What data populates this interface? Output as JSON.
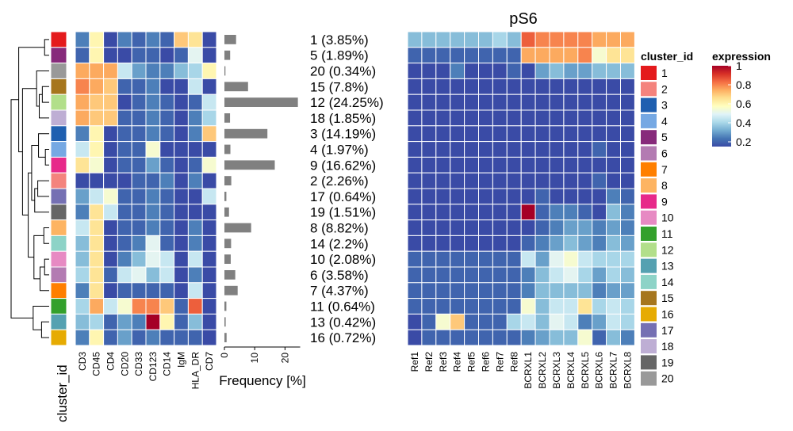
{
  "chart_data": {
    "type": "heatmap",
    "title": "pS6",
    "row_annotation_name": "cluster_id",
    "row_order": [
      "1",
      "5",
      "20",
      "15",
      "12",
      "18",
      "3",
      "4",
      "9",
      "2",
      "17",
      "19",
      "8",
      "14",
      "10",
      "6",
      "7",
      "11",
      "13",
      "16"
    ],
    "row_labels": [
      "1 (3.85%)",
      "5 (1.89%)",
      "20 (0.34%)",
      "15 (7.8%)",
      "12 (24.25%)",
      "18 (1.85%)",
      "3 (14.19%)",
      "4 (1.97%)",
      "9 (16.62%)",
      "2 (2.26%)",
      "17 (0.64%)",
      "19 (1.51%)",
      "8 (8.82%)",
      "14 (2.2%)",
      "10 (2.08%)",
      "6 (3.58%)",
      "7 (4.37%)",
      "11 (0.64%)",
      "13 (0.42%)",
      "16 (0.72%)"
    ],
    "frequencies": [
      3.85,
      1.89,
      0.34,
      7.8,
      24.25,
      1.85,
      14.19,
      1.97,
      16.62,
      2.26,
      0.64,
      1.51,
      8.82,
      2.2,
      2.08,
      3.58,
      4.37,
      0.64,
      0.42,
      0.72
    ],
    "frequency_axis": {
      "label": "Frequency [%]",
      "ticks": [
        0,
        10,
        20
      ],
      "range": [
        0,
        25
      ]
    },
    "marker_heatmap": {
      "columns": [
        "CD3",
        "CD45",
        "CD4",
        "CD20",
        "CD33",
        "CD123",
        "CD14",
        "IgM",
        "HLA_DR",
        "CD7"
      ],
      "values": [
        [
          0.25,
          0.6,
          0.15,
          0.25,
          0.2,
          0.25,
          0.2,
          0.7,
          0.65,
          0.15
        ],
        [
          0.2,
          0.6,
          0.15,
          0.15,
          0.2,
          0.2,
          0.15,
          0.2,
          0.5,
          0.15
        ],
        [
          0.75,
          0.75,
          0.75,
          0.45,
          0.3,
          0.25,
          0.25,
          0.35,
          0.4,
          0.6
        ],
        [
          0.8,
          0.75,
          0.7,
          0.2,
          0.2,
          0.25,
          0.15,
          0.15,
          0.45,
          0.15
        ],
        [
          0.75,
          0.7,
          0.7,
          0.15,
          0.2,
          0.25,
          0.2,
          0.15,
          0.2,
          0.45
        ],
        [
          0.75,
          0.7,
          0.7,
          0.2,
          0.2,
          0.25,
          0.2,
          0.15,
          0.25,
          0.4
        ],
        [
          0.25,
          0.6,
          0.15,
          0.2,
          0.2,
          0.25,
          0.2,
          0.15,
          0.25,
          0.7
        ],
        [
          0.45,
          0.6,
          0.15,
          0.2,
          0.2,
          0.55,
          0.15,
          0.15,
          0.15,
          0.15
        ],
        [
          0.65,
          0.55,
          0.15,
          0.2,
          0.2,
          0.3,
          0.2,
          0.15,
          0.2,
          0.55
        ],
        [
          0.15,
          0.15,
          0.15,
          0.15,
          0.2,
          0.2,
          0.25,
          0.15,
          0.25,
          0.15
        ],
        [
          0.3,
          0.45,
          0.55,
          0.2,
          0.2,
          0.25,
          0.2,
          0.15,
          0.15,
          0.45
        ],
        [
          0.25,
          0.65,
          0.45,
          0.2,
          0.2,
          0.25,
          0.2,
          0.15,
          0.15,
          0.15
        ],
        [
          0.45,
          0.65,
          0.15,
          0.2,
          0.2,
          0.25,
          0.2,
          0.15,
          0.25,
          0.15
        ],
        [
          0.35,
          0.65,
          0.15,
          0.2,
          0.25,
          0.5,
          0.2,
          0.15,
          0.25,
          0.15
        ],
        [
          0.35,
          0.65,
          0.15,
          0.25,
          0.35,
          0.5,
          0.45,
          0.15,
          0.45,
          0.15
        ],
        [
          0.4,
          0.65,
          0.2,
          0.45,
          0.5,
          0.35,
          0.45,
          0.15,
          0.25,
          0.15
        ],
        [
          0.25,
          0.65,
          0.15,
          0.2,
          0.2,
          0.2,
          0.2,
          0.15,
          0.45,
          0.15
        ],
        [
          0.4,
          0.75,
          0.45,
          0.55,
          0.8,
          0.8,
          0.7,
          0.2,
          0.85,
          0.15
        ],
        [
          0.35,
          0.4,
          0.2,
          0.3,
          0.25,
          1.0,
          0.6,
          0.2,
          0.35,
          0.15
        ],
        [
          0.25,
          0.6,
          0.2,
          0.3,
          0.2,
          0.25,
          0.2,
          0.2,
          0.2,
          0.15
        ]
      ]
    },
    "state_heatmap": {
      "columns": [
        "Ref1",
        "Ref2",
        "Ref3",
        "Ref4",
        "Ref5",
        "Ref6",
        "Ref7",
        "Ref8",
        "BCRXL1",
        "BCRXL2",
        "BCRXL3",
        "BCRXL4",
        "BCRXL5",
        "BCRXL6",
        "BCRXL7",
        "BCRXL8"
      ],
      "values": [
        [
          0.35,
          0.35,
          0.35,
          0.35,
          0.35,
          0.35,
          0.4,
          0.35,
          0.85,
          0.8,
          0.8,
          0.8,
          0.8,
          0.75,
          0.75,
          0.75
        ],
        [
          0.2,
          0.2,
          0.2,
          0.2,
          0.2,
          0.2,
          0.2,
          0.2,
          0.75,
          0.75,
          0.75,
          0.75,
          0.8,
          0.55,
          0.65,
          0.65
        ],
        [
          0.15,
          0.15,
          0.15,
          0.25,
          0.15,
          0.15,
          0.15,
          0.2,
          0.15,
          0.3,
          0.35,
          0.3,
          0.3,
          0.35,
          0.35,
          0.35
        ],
        [
          0.15,
          0.15,
          0.15,
          0.15,
          0.15,
          0.15,
          0.15,
          0.15,
          0.15,
          0.15,
          0.15,
          0.15,
          0.15,
          0.15,
          0.15,
          0.15
        ],
        [
          0.15,
          0.15,
          0.15,
          0.15,
          0.15,
          0.15,
          0.15,
          0.15,
          0.15,
          0.15,
          0.15,
          0.15,
          0.15,
          0.15,
          0.15,
          0.15
        ],
        [
          0.15,
          0.15,
          0.15,
          0.15,
          0.15,
          0.15,
          0.15,
          0.15,
          0.15,
          0.15,
          0.15,
          0.15,
          0.15,
          0.15,
          0.15,
          0.15
        ],
        [
          0.15,
          0.15,
          0.15,
          0.15,
          0.15,
          0.15,
          0.15,
          0.15,
          0.15,
          0.15,
          0.15,
          0.15,
          0.15,
          0.15,
          0.15,
          0.15
        ],
        [
          0.15,
          0.15,
          0.15,
          0.15,
          0.15,
          0.15,
          0.15,
          0.15,
          0.15,
          0.15,
          0.15,
          0.15,
          0.15,
          0.2,
          0.15,
          0.15
        ],
        [
          0.15,
          0.15,
          0.15,
          0.15,
          0.15,
          0.15,
          0.15,
          0.15,
          0.15,
          0.15,
          0.15,
          0.15,
          0.15,
          0.15,
          0.15,
          0.15
        ],
        [
          0.15,
          0.15,
          0.15,
          0.15,
          0.15,
          0.15,
          0.15,
          0.15,
          0.15,
          0.15,
          0.15,
          0.15,
          0.15,
          0.2,
          0.15,
          0.15
        ],
        [
          0.15,
          0.15,
          0.15,
          0.15,
          0.15,
          0.15,
          0.15,
          0.15,
          0.15,
          0.2,
          0.15,
          0.15,
          0.15,
          0.15,
          0.25,
          0.2
        ],
        [
          0.15,
          0.15,
          0.15,
          0.15,
          0.15,
          0.15,
          0.15,
          0.15,
          1.0,
          0.2,
          0.25,
          0.25,
          0.2,
          0.15,
          0.35,
          0.25
        ],
        [
          0.15,
          0.15,
          0.15,
          0.15,
          0.15,
          0.15,
          0.15,
          0.15,
          0.15,
          0.2,
          0.25,
          0.3,
          0.3,
          0.25,
          0.3,
          0.25
        ],
        [
          0.15,
          0.15,
          0.15,
          0.15,
          0.15,
          0.15,
          0.15,
          0.15,
          0.2,
          0.25,
          0.3,
          0.35,
          0.3,
          0.25,
          0.35,
          0.3
        ],
        [
          0.2,
          0.2,
          0.2,
          0.2,
          0.2,
          0.2,
          0.2,
          0.2,
          0.45,
          0.3,
          0.5,
          0.55,
          0.45,
          0.4,
          0.4,
          0.4
        ],
        [
          0.2,
          0.2,
          0.2,
          0.2,
          0.2,
          0.2,
          0.2,
          0.2,
          0.25,
          0.35,
          0.45,
          0.5,
          0.4,
          0.3,
          0.4,
          0.35
        ],
        [
          0.2,
          0.2,
          0.2,
          0.2,
          0.2,
          0.2,
          0.2,
          0.2,
          0.25,
          0.35,
          0.35,
          0.35,
          0.35,
          0.25,
          0.3,
          0.3
        ],
        [
          0.2,
          0.2,
          0.2,
          0.2,
          0.2,
          0.2,
          0.2,
          0.2,
          0.55,
          0.35,
          0.45,
          0.45,
          0.65,
          0.4,
          0.45,
          0.4
        ],
        [
          0.15,
          0.2,
          0.55,
          0.7,
          0.2,
          0.2,
          0.2,
          0.4,
          0.45,
          0.35,
          0.5,
          0.45,
          0.25,
          0.3,
          0.45,
          0.4
        ],
        [
          0.15,
          0.2,
          0.2,
          0.2,
          0.2,
          0.2,
          0.2,
          0.2,
          0.25,
          0.3,
          0.35,
          0.35,
          0.55,
          0.2,
          0.35,
          0.25
        ]
      ]
    },
    "cluster_colors": {
      "1": "#e41a1c",
      "2": "#f4837d",
      "3": "#1f5fb0",
      "4": "#75a8e3",
      "5": "#872a7b",
      "6": "#b37bb2",
      "7": "#ff7f00",
      "8": "#fdb462",
      "9": "#e7298a",
      "10": "#e78ac3",
      "11": "#33a02c",
      "12": "#b2df8a",
      "13": "#55a1b1",
      "14": "#8dd3c7",
      "15": "#a6761d",
      "16": "#e6ab02",
      "17": "#7570b3",
      "18": "#beaed4",
      "19": "#666666",
      "20": "#999999"
    },
    "legend_clusters": [
      "1",
      "2",
      "3",
      "4",
      "5",
      "6",
      "7",
      "8",
      "9",
      "10",
      "11",
      "12",
      "13",
      "14",
      "15",
      "16",
      "17",
      "18",
      "19",
      "20"
    ],
    "expression_legend": {
      "title": "expression",
      "ticks": [
        0.2,
        0.4,
        0.6,
        0.8,
        1
      ],
      "range": [
        0.15,
        1.0
      ]
    },
    "colorscale": [
      "#3a4ba6",
      "#4575b4",
      "#74add1",
      "#abd9e9",
      "#e0f3f8",
      "#ffffbf",
      "#fee090",
      "#fdae61",
      "#f46d43",
      "#d73027",
      "#a50026"
    ]
  }
}
